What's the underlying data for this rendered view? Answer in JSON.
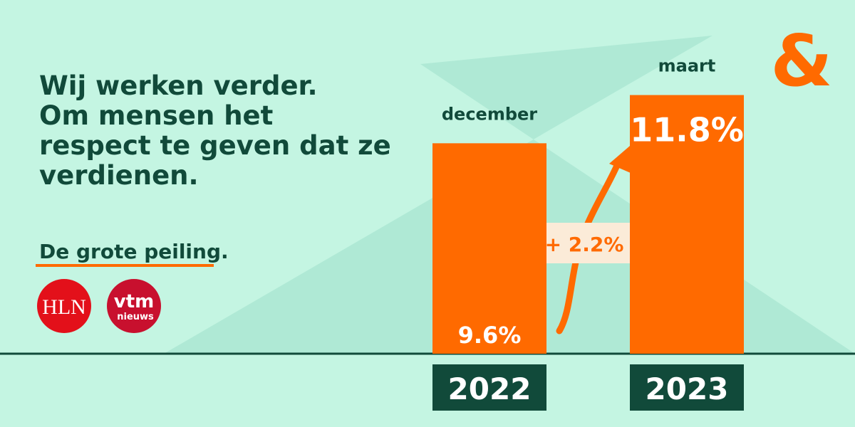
{
  "headline": {
    "lines": [
      "Wij werken verder.",
      "Om mensen het",
      "respect te geven dat ze",
      "verdienen."
    ]
  },
  "subtitle": "De grote peiling.",
  "logos": {
    "hln": "HLN",
    "vtm": "vtm",
    "vtm_sub": "nieuws"
  },
  "brand": "&",
  "chart_data": {
    "type": "bar",
    "categories": [
      "2022",
      "2023"
    ],
    "periods": [
      "december",
      "maart"
    ],
    "values": [
      9.6,
      11.8
    ],
    "value_labels": [
      "9.6%",
      "11.8%"
    ],
    "color": "#ff6a00",
    "change_label": "+ 2.2%"
  }
}
